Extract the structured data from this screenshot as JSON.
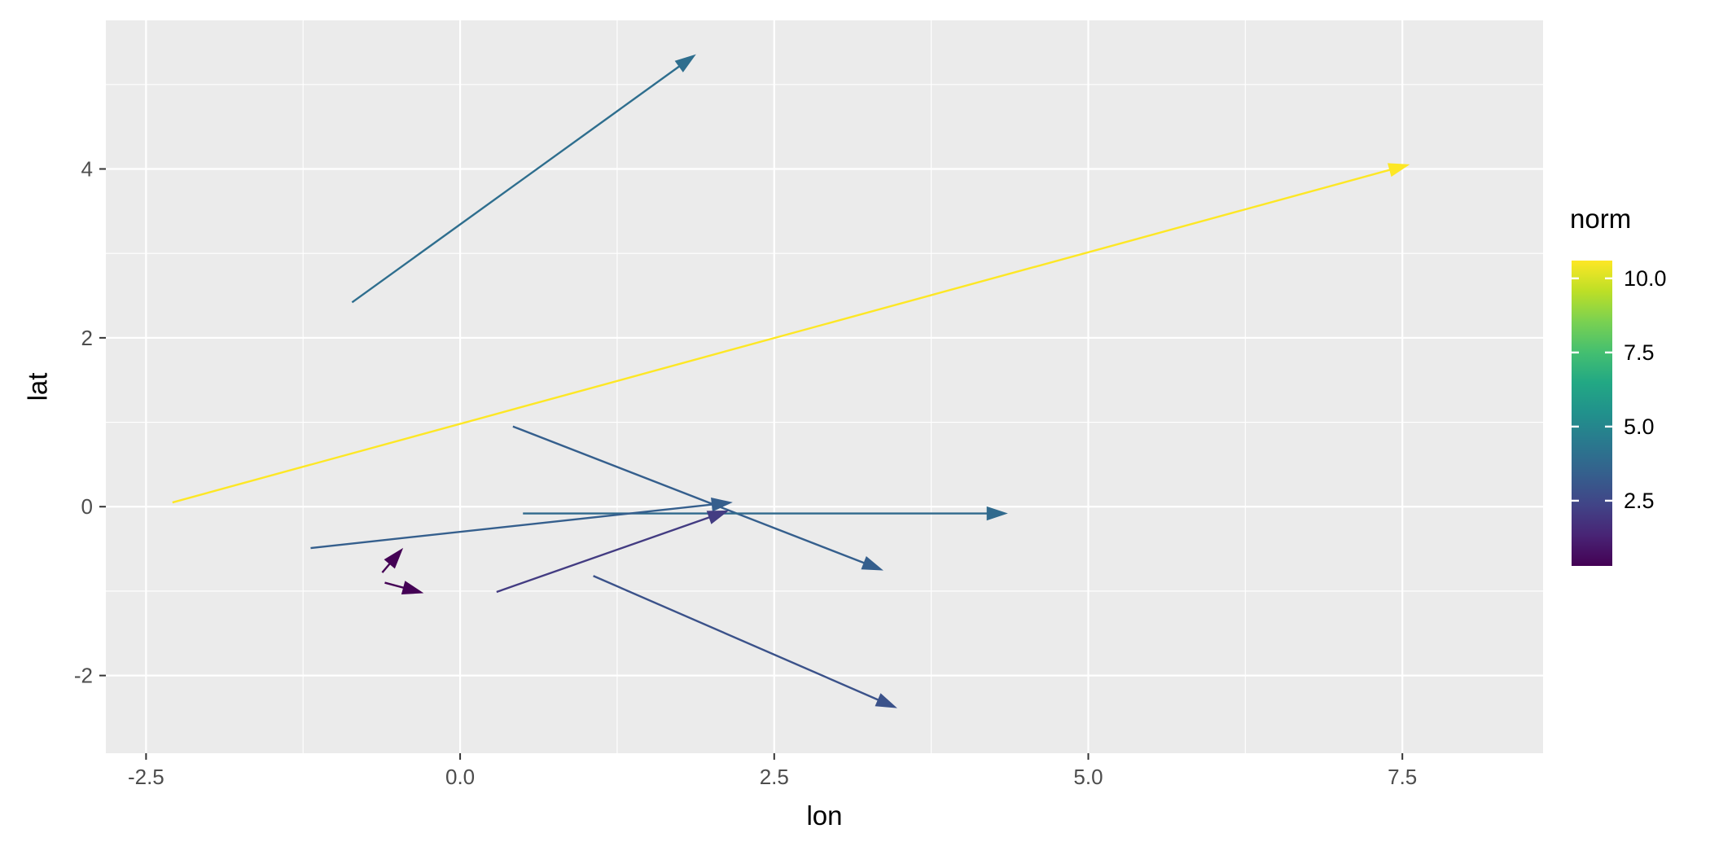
{
  "chart_data": {
    "type": "line",
    "geom": "segment-arrows",
    "title": "",
    "xlabel": "lon",
    "ylabel": "lat",
    "xlim": [
      -2.82,
      8.62
    ],
    "ylim": [
      -2.92,
      5.76
    ],
    "x_ticks": [
      -2.5,
      0.0,
      2.5,
      5.0,
      7.5
    ],
    "x_tick_labels": [
      "-2.5",
      "0.0",
      "2.5",
      "5.0",
      "7.5"
    ],
    "y_ticks": [
      -2,
      0,
      2,
      4
    ],
    "y_tick_labels": [
      "-2",
      "0",
      "2",
      "4"
    ],
    "x_minor_ticks": [
      -1.25,
      1.25,
      3.75,
      6.25
    ],
    "y_minor_ticks": [
      -1,
      1,
      3,
      5
    ],
    "grid": true,
    "panel_background": "#EBEBEB",
    "grid_color": "#FFFFFF",
    "tick_label_color": "#4D4D4D",
    "tick_mark_color": "#333333",
    "color_scale": "viridis",
    "viridis_stops": [
      "#440154",
      "#482475",
      "#414487",
      "#355f8d",
      "#2a788e",
      "#21918c",
      "#22a884",
      "#44bf70",
      "#7ad151",
      "#bddf26",
      "#fde725"
    ],
    "legend": {
      "title": "norm",
      "position": "right",
      "domain": [
        0.3,
        10.6
      ],
      "ticks": [
        2.5,
        5.0,
        7.5,
        10.0
      ],
      "tick_labels": [
        "2.5",
        "5.0",
        "7.5",
        "10.0"
      ]
    },
    "segments": [
      {
        "lon": -0.86,
        "lat": 2.42,
        "lon_end": 1.87,
        "lat_end": 5.35,
        "norm": 4.0
      },
      {
        "lon": -2.29,
        "lat": 0.05,
        "lon_end": 7.55,
        "lat_end": 4.05,
        "norm": 10.6
      },
      {
        "lon": 0.42,
        "lat": 0.95,
        "lon_end": 3.36,
        "lat_end": -0.75,
        "norm": 3.4
      },
      {
        "lon": 0.5,
        "lat": -0.08,
        "lon_end": 4.35,
        "lat_end": -0.08,
        "norm": 3.85
      },
      {
        "lon": -1.19,
        "lat": -0.49,
        "lon_end": 2.16,
        "lat_end": 0.05,
        "norm": 3.4
      },
      {
        "lon": 0.29,
        "lat": -1.01,
        "lon_end": 2.13,
        "lat_end": -0.05,
        "norm": 2.1
      },
      {
        "lon": 1.06,
        "lat": -0.82,
        "lon_end": 3.47,
        "lat_end": -2.38,
        "norm": 2.9
      },
      {
        "lon": -0.62,
        "lat": -0.78,
        "lon_end": -0.46,
        "lat_end": -0.5,
        "norm": 0.32
      },
      {
        "lon": -0.6,
        "lat": -0.9,
        "lon_end": -0.3,
        "lat_end": -1.02,
        "norm": 0.32
      }
    ]
  }
}
